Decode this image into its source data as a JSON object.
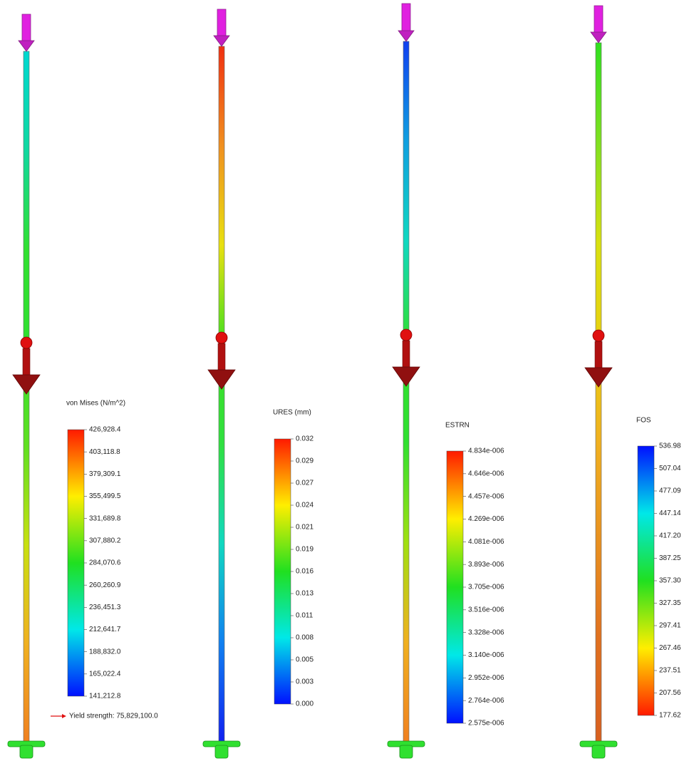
{
  "panels": [
    {
      "legend_title": "von Mises (N/m^2)",
      "legend_labels": [
        "426,928.4",
        "403,118.8",
        "379,309.1",
        "355,499.5",
        "331,689.8",
        "307,880.2",
        "284,070.6",
        "260,260.9",
        "236,451.3",
        "212,641.7",
        "188,832.0",
        "165,022.4",
        "141,212.8"
      ],
      "note": "Yield strength: 75,829,100.0"
    },
    {
      "legend_title": "URES (mm)",
      "legend_labels": [
        "0.032",
        "0.029",
        "0.027",
        "0.024",
        "0.021",
        "0.019",
        "0.016",
        "0.013",
        "0.011",
        "0.008",
        "0.005",
        "0.003",
        "0.000"
      ]
    },
    {
      "legend_title": "ESTRN",
      "legend_labels": [
        "4.834e-006",
        "4.646e-006",
        "4.457e-006",
        "4.269e-006",
        "4.081e-006",
        "3.893e-006",
        "3.705e-006",
        "3.516e-006",
        "3.328e-006",
        "3.140e-006",
        "2.952e-006",
        "2.764e-006",
        "2.575e-006"
      ]
    },
    {
      "legend_title": "FOS",
      "legend_labels": [
        "536.98",
        "507.04",
        "477.09",
        "447.14",
        "417.20",
        "387.25",
        "357.30",
        "327.35",
        "297.41",
        "267.46",
        "237.51",
        "207.56",
        "177.62"
      ]
    }
  ]
}
